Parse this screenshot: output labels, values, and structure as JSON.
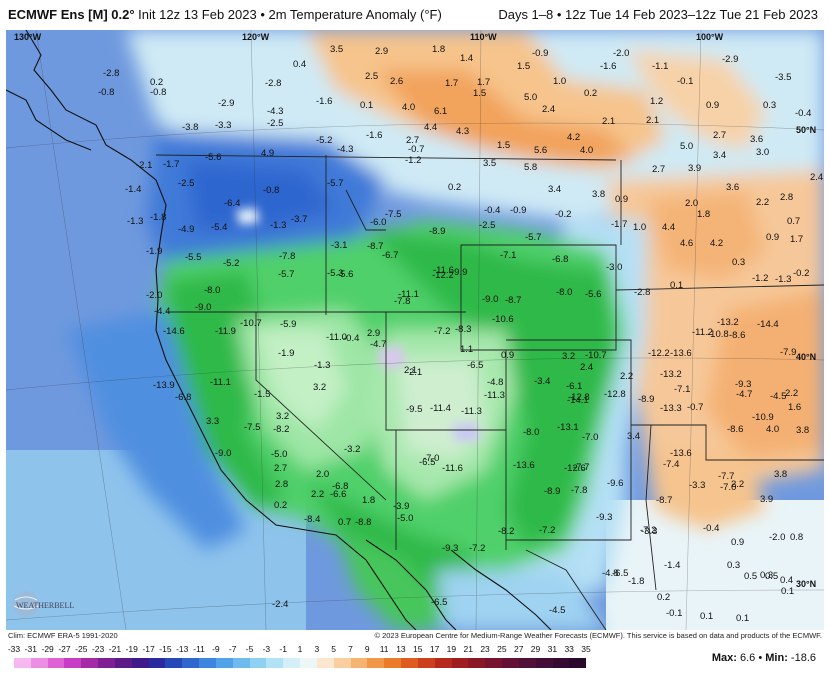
{
  "header": {
    "model": "ECMWF Ens [M] 0.2°",
    "init": "Init 12z 13 Feb 2023",
    "variable": "2m Temperature Anomaly (°F)",
    "period": "Days 1–8 • 12z Tue 14 Feb 2023–12z Tue 21 Feb 2023"
  },
  "grid_labels": {
    "lon_130": "130°W",
    "lon_120": "120°W",
    "lon_110": "110°W",
    "lon_100": "100°W",
    "lat_50": "50°N",
    "lat_40": "40°N",
    "lat_30": "30°N"
  },
  "map_values": [
    {
      "t": "-2.8"
    },
    {
      "t": "0.2"
    },
    {
      "t": "-0.8"
    },
    {
      "t": "-0.8"
    },
    {
      "t": "-2.9"
    },
    {
      "t": "-3.8"
    },
    {
      "t": "-3.3"
    },
    {
      "t": "-2.8"
    },
    {
      "t": "0.4"
    },
    {
      "t": "-1.6"
    },
    {
      "t": "3.5"
    },
    {
      "t": "2.9"
    },
    {
      "t": "1.8"
    },
    {
      "t": "1.4"
    },
    {
      "t": "-0.9"
    },
    {
      "t": "1.5"
    },
    {
      "t": "-2.0"
    },
    {
      "t": "-1.6"
    },
    {
      "t": "-1.1"
    },
    {
      "t": "-2.9"
    },
    {
      "t": "-3.5"
    },
    {
      "t": "2.5"
    },
    {
      "t": "2.6"
    },
    {
      "t": "1.7"
    },
    {
      "t": "1.7"
    },
    {
      "t": "1.5"
    },
    {
      "t": "1.0"
    },
    {
      "t": "-0.1"
    },
    {
      "t": "4.0"
    },
    {
      "t": "6.1"
    },
    {
      "t": "5.0"
    },
    {
      "t": "0.2"
    },
    {
      "t": "1.2"
    },
    {
      "t": "0.9"
    },
    {
      "t": "0.3"
    },
    {
      "t": "-0.4"
    },
    {
      "t": "-4.3"
    },
    {
      "t": "-2.5"
    },
    {
      "t": "0.1"
    },
    {
      "t": "4.4"
    },
    {
      "t": "4.3"
    },
    {
      "t": "2.4"
    },
    {
      "t": "2.1"
    },
    {
      "t": "2.1"
    },
    {
      "t": "-5.2"
    },
    {
      "t": "-1.6"
    },
    {
      "t": "2.7"
    },
    {
      "t": "4.2"
    },
    {
      "t": "2.7"
    },
    {
      "t": "3.6"
    },
    {
      "t": "-4.3"
    },
    {
      "t": "-0.7"
    },
    {
      "t": "1.5"
    },
    {
      "t": "5.6"
    },
    {
      "t": "4.0"
    },
    {
      "t": "5.0"
    },
    {
      "t": "3.4"
    },
    {
      "t": "3.0"
    },
    {
      "t": "-5.6"
    },
    {
      "t": "4.9"
    },
    {
      "t": "-1.2"
    },
    {
      "t": "3.5"
    },
    {
      "t": "5.8"
    },
    {
      "t": "2.7"
    },
    {
      "t": "3.9"
    },
    {
      "t": "-2.1"
    },
    {
      "t": "-1.7"
    },
    {
      "t": "-2.5"
    },
    {
      "t": "-5.7"
    },
    {
      "t": "3.6"
    },
    {
      "t": "2.4"
    },
    {
      "t": "-1.4"
    },
    {
      "t": "-0.8"
    },
    {
      "t": "0.2"
    },
    {
      "t": "3.4"
    },
    {
      "t": "3.8"
    },
    {
      "t": "2.8"
    },
    {
      "t": "-6.4"
    },
    {
      "t": "0.9"
    },
    {
      "t": "2.0"
    },
    {
      "t": "2.2"
    },
    {
      "t": "-1.3"
    },
    {
      "t": "-1.8"
    },
    {
      "t": "-3.7"
    },
    {
      "t": "-7.5"
    },
    {
      "t": "-0.4"
    },
    {
      "t": "-0.9"
    },
    {
      "t": "-0.2"
    },
    {
      "t": "1.8"
    },
    {
      "t": "-4.9"
    },
    {
      "t": "-5.4"
    },
    {
      "t": "-1.3"
    },
    {
      "t": "-6.0"
    },
    {
      "t": "-8.9"
    },
    {
      "t": "-2.5"
    },
    {
      "t": "-1.7"
    },
    {
      "t": "1.0"
    },
    {
      "t": "4.4"
    },
    {
      "t": "0.7"
    },
    {
      "t": "-3.1"
    },
    {
      "t": "-8.7"
    },
    {
      "t": "-5.7"
    },
    {
      "t": "4.6"
    },
    {
      "t": "4.2"
    },
    {
      "t": "0.9"
    },
    {
      "t": "1.7"
    },
    {
      "t": "-1.9"
    },
    {
      "t": "-5.5"
    },
    {
      "t": "-7.8"
    },
    {
      "t": "-6.7"
    },
    {
      "t": "-7.1"
    },
    {
      "t": "-6.8"
    },
    {
      "t": "-3.0"
    },
    {
      "t": "0.3"
    },
    {
      "t": "-5.2"
    },
    {
      "t": "-5.7"
    },
    {
      "t": "-5.3"
    },
    {
      "t": "-5.6"
    },
    {
      "t": "-11.6"
    },
    {
      "t": "-12.2"
    },
    {
      "t": "-9.9"
    },
    {
      "t": "-1.2"
    },
    {
      "t": "-1.3"
    },
    {
      "t": "-0.2"
    },
    {
      "t": "-2.0"
    },
    {
      "t": "-8.0"
    },
    {
      "t": "-7.8"
    },
    {
      "t": "-11.1"
    },
    {
      "t": "-9.0"
    },
    {
      "t": "-8.7"
    },
    {
      "t": "-8.0"
    },
    {
      "t": "-5.6"
    },
    {
      "t": "-2.8"
    },
    {
      "t": "0.1"
    },
    {
      "t": "-4.4"
    },
    {
      "t": "-9.0"
    },
    {
      "t": "-10.6"
    },
    {
      "t": "-10.7"
    },
    {
      "t": "-5.9"
    },
    {
      "t": "-0.4"
    },
    {
      "t": "2.9"
    },
    {
      "t": "-4.7"
    },
    {
      "t": "-7.2"
    },
    {
      "t": "-8.3"
    },
    {
      "t": "-11.2"
    },
    {
      "t": "-13.2"
    },
    {
      "t": "-14.4"
    },
    {
      "t": "-14.6"
    },
    {
      "t": "-11.9"
    },
    {
      "t": "-11.0"
    },
    {
      "t": "1.1"
    },
    {
      "t": "0.9"
    },
    {
      "t": "3.2"
    },
    {
      "t": "-10.7"
    },
    {
      "t": "-12.2"
    },
    {
      "t": "-13.6"
    },
    {
      "t": "-10.8"
    },
    {
      "t": "-8.6"
    },
    {
      "t": "-7.9"
    },
    {
      "t": "-1.9"
    },
    {
      "t": "-1.3"
    },
    {
      "t": "2.1"
    },
    {
      "t": "2.4"
    },
    {
      "t": "2.2"
    },
    {
      "t": "-13.2"
    },
    {
      "t": "-13.9"
    },
    {
      "t": "-11.1"
    },
    {
      "t": "-4.8"
    },
    {
      "t": "-3.4"
    },
    {
      "t": "-6.1"
    },
    {
      "t": "-7.1"
    },
    {
      "t": "-9.3"
    },
    {
      "t": "-6.8"
    },
    {
      "t": "-1.5"
    },
    {
      "t": "2.1"
    },
    {
      "t": "-6.5"
    },
    {
      "t": "-11.3"
    },
    {
      "t": "-14.1"
    },
    {
      "t": "-12.8"
    },
    {
      "t": "-12.8"
    },
    {
      "t": "-8.9"
    },
    {
      "t": "-4.7"
    },
    {
      "t": "-4.5"
    },
    {
      "t": "2.2"
    },
    {
      "t": "3.2"
    },
    {
      "t": "-9.5"
    },
    {
      "t": "-11.4"
    },
    {
      "t": "-11.3"
    },
    {
      "t": "-13.3"
    },
    {
      "t": "-0.7"
    },
    {
      "t": "1.6"
    },
    {
      "t": "3.2"
    },
    {
      "t": "-10.9"
    },
    {
      "t": "3.3"
    },
    {
      "t": "-7.5"
    },
    {
      "t": "-8.2"
    },
    {
      "t": "-8.0"
    },
    {
      "t": "-13.1"
    },
    {
      "t": "-7.0"
    },
    {
      "t": "-8.6"
    },
    {
      "t": "4.0"
    },
    {
      "t": "3.8"
    },
    {
      "t": "3.4"
    },
    {
      "t": "-3.2"
    },
    {
      "t": "-9.0"
    },
    {
      "t": "-5.0"
    },
    {
      "t": "-7.0"
    },
    {
      "t": "-13.6"
    },
    {
      "t": "2.7"
    },
    {
      "t": "-6.5"
    },
    {
      "t": "-11.6"
    },
    {
      "t": "-13.6"
    },
    {
      "t": "-12.6"
    },
    {
      "t": "-7.7"
    },
    {
      "t": "-7.4"
    },
    {
      "t": "2.0"
    },
    {
      "t": "-7.7"
    },
    {
      "t": "3.8"
    },
    {
      "t": "2.8"
    },
    {
      "t": "-6.8"
    },
    {
      "t": "-9.6"
    },
    {
      "t": "-3.3"
    },
    {
      "t": "2.2"
    },
    {
      "t": "2.2"
    },
    {
      "t": "-6.6"
    },
    {
      "t": "-8.9"
    },
    {
      "t": "-7.8"
    },
    {
      "t": "-7.0"
    },
    {
      "t": "3.9"
    },
    {
      "t": "1.8"
    },
    {
      "t": "-8.7"
    },
    {
      "t": "0.2"
    },
    {
      "t": "-3.9"
    },
    {
      "t": "-8.4"
    },
    {
      "t": "-5.0"
    },
    {
      "t": "-9.3"
    },
    {
      "t": "-3.3"
    },
    {
      "t": "-0.4"
    },
    {
      "t": "0.7"
    },
    {
      "t": "-8.8"
    },
    {
      "t": "-8.2"
    },
    {
      "t": "-7.2"
    },
    {
      "t": "-7.2"
    },
    {
      "t": "-2.0"
    },
    {
      "t": "0.8"
    },
    {
      "t": "-9.3"
    },
    {
      "t": "-7.2"
    },
    {
      "t": "0.9"
    },
    {
      "t": "-1.4"
    },
    {
      "t": "0.3"
    },
    {
      "t": "-4.8"
    },
    {
      "t": "-6.5"
    },
    {
      "t": "0.3"
    },
    {
      "t": "-1.8"
    },
    {
      "t": "0.5"
    },
    {
      "t": "0.5"
    },
    {
      "t": "0.4"
    },
    {
      "t": "0.2"
    },
    {
      "t": "0.1"
    },
    {
      "t": "-2.4"
    },
    {
      "t": "-6.5"
    },
    {
      "t": "-0.1"
    },
    {
      "t": "0.1"
    },
    {
      "t": "0.1"
    },
    {
      "t": "-4.5"
    }
  ],
  "footer": {
    "clim": "Clim: ECMWF ERA-5 1991-2020",
    "credit": "© 2023 European Centre for Medium-Range Weather Forecasts (ECMWF). This service is based on data and products of the ECMWF."
  },
  "legend": {
    "ticks": [
      "-33",
      "-31",
      "-29",
      "-27",
      "-25",
      "-23",
      "-21",
      "-19",
      "-17",
      "-15",
      "-13",
      "-11",
      "-9",
      "-7",
      "-5",
      "-3",
      "-1",
      "1",
      "3",
      "5",
      "7",
      "9",
      "11",
      "13",
      "15",
      "17",
      "19",
      "21",
      "23",
      "25",
      "27",
      "29",
      "31",
      "33",
      "35"
    ],
    "colors": [
      "#f6b8f0",
      "#ec8ee4",
      "#de62d6",
      "#c83dc5",
      "#a52aa8",
      "#7e1f93",
      "#5b1a85",
      "#3f1a8a",
      "#2b2a9e",
      "#2749b7",
      "#2f67cf",
      "#3d85de",
      "#52a2e8",
      "#6fbbee",
      "#8fd1f3",
      "#b2e2f6",
      "#d4eff8",
      "#eef7f8",
      "#fbe6d0",
      "#f9cfa2",
      "#f6b472",
      "#f19848",
      "#ea7b2a",
      "#de5c1f",
      "#cc3f1c",
      "#b52a1c",
      "#9e1d1f",
      "#8a1726",
      "#761430",
      "#631235",
      "#520f38",
      "#430d38",
      "#360a33",
      "#2a072c"
    ],
    "max_label": "Max:",
    "max_value": "6.6",
    "min_label": "Min:",
    "min_value": "-18.6"
  },
  "logo": {
    "text": "WEATHERBELL"
  }
}
